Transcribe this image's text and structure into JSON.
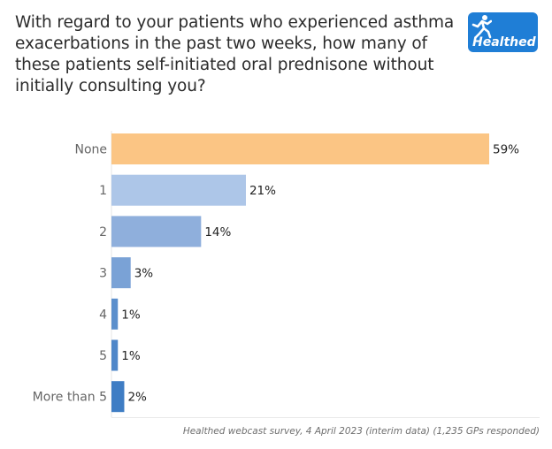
{
  "question": "With regard to your patients who experienced asthma exacerbations in the past two weeks, how many of these patients self-initiated oral prednisone without initially consulting you?",
  "logo": {
    "text": "Healthed",
    "icon": "runner-figure-icon",
    "color": "#1f7ed6"
  },
  "source": "Healthed webcast survey, 4 April 2023 (interim data) (1,235 GPs responded)",
  "chart_data": {
    "type": "bar",
    "orientation": "horizontal",
    "categories": [
      "None",
      "1",
      "2",
      "3",
      "4",
      "5",
      "More than 5"
    ],
    "values": [
      59,
      21,
      14,
      3,
      1,
      1,
      2
    ],
    "value_labels": [
      "59%",
      "21%",
      "14%",
      "3%",
      "1%",
      "1%",
      "2%"
    ],
    "colors": [
      "#fbc584",
      "#adc6e8",
      "#8fafdc",
      "#7aa2d6",
      "#5b8fcc",
      "#4f87c9",
      "#3f7dc4"
    ],
    "xlim": [
      0,
      59
    ],
    "grid": false,
    "legend": "none"
  }
}
